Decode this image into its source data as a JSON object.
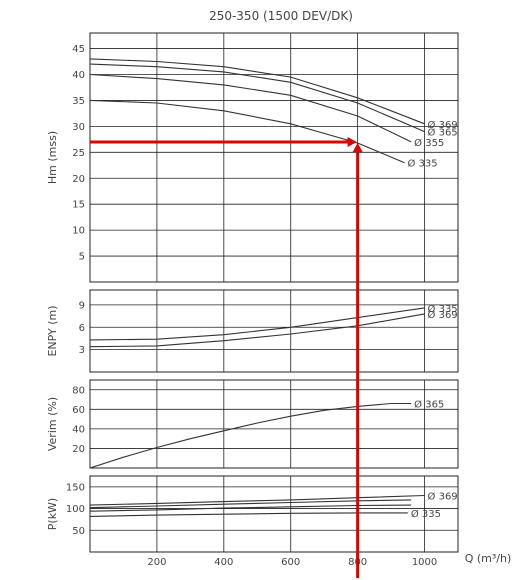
{
  "chart_data": {
    "type": "line",
    "title": "250-350 (1500 DEV/DK)",
    "x_axis": {
      "label": "Q (m³/h)",
      "lim": [
        0,
        1100
      ],
      "ticks": [
        200,
        400,
        600,
        800,
        1000
      ],
      "grid": true
    },
    "panels": [
      {
        "id": "head",
        "ylabel": "Hm (mss)",
        "ylim": [
          0,
          48
        ],
        "yticks": [
          5,
          10,
          15,
          20,
          25,
          30,
          35,
          40,
          45
        ],
        "series": [
          {
            "name": "Ø 369",
            "x": [
              0,
              200,
              400,
              600,
              800,
              1000
            ],
            "y": [
              43,
              42.5,
              41.5,
              39.5,
              35.5,
              30.5
            ]
          },
          {
            "name": "Ø 365",
            "x": [
              0,
              200,
              400,
              600,
              800,
              1000
            ],
            "y": [
              42,
              41.5,
              40.5,
              38.5,
              34.5,
              29
            ]
          },
          {
            "name": "Ø 355",
            "x": [
              0,
              200,
              400,
              600,
              800,
              960
            ],
            "y": [
              40,
              39.2,
              38,
              36,
              32,
              27
            ]
          },
          {
            "name": "Ø 335",
            "x": [
              0,
              200,
              400,
              600,
              800,
              940
            ],
            "y": [
              35,
              34.5,
              33,
              30.5,
              26.8,
              23
            ]
          }
        ]
      },
      {
        "id": "npsh",
        "ylabel": "ENPY (m)",
        "ylim": [
          0,
          11
        ],
        "yticks": [
          3,
          6,
          9
        ],
        "series": [
          {
            "name": "Ø 335",
            "x": [
              0,
              200,
              400,
              600,
              800,
              1000
            ],
            "y": [
              4.3,
              4.4,
              5,
              6,
              7.3,
              8.6
            ]
          },
          {
            "name": "Ø 369",
            "x": [
              0,
              200,
              400,
              600,
              800,
              1000
            ],
            "y": [
              3.4,
              3.5,
              4.2,
              5.1,
              6.2,
              7.8
            ]
          }
        ]
      },
      {
        "id": "efficiency",
        "ylabel": "Verim (%)",
        "ylim": [
          0,
          90
        ],
        "yticks": [
          20,
          40,
          60,
          80
        ],
        "series": [
          {
            "name": "Ø 365",
            "x": [
              0,
              100,
              200,
              300,
              400,
              500,
              600,
              700,
              800,
              900,
              960
            ],
            "y": [
              0,
              11,
              21,
              30,
              38,
              46,
              53,
              59,
              63,
              66,
              66
            ]
          }
        ]
      },
      {
        "id": "power",
        "ylabel": "P(kW)",
        "ylim": [
          0,
          175
        ],
        "yticks": [
          50,
          100,
          150
        ],
        "series": [
          {
            "name": "Ø 369",
            "x": [
              0,
              200,
              400,
              600,
              800,
              1000
            ],
            "y": [
              108,
              112,
              116,
              120,
              125,
              130
            ]
          },
          {
            "name": "",
            "x": [
              0,
              200,
              400,
              600,
              800,
              960
            ],
            "y": [
              102,
              106,
              110,
              114,
              118,
              120
            ]
          },
          {
            "name": "",
            "x": [
              0,
              200,
              400,
              600,
              800,
              960
            ],
            "y": [
              94,
              97,
              101,
              104,
              107,
              108
            ]
          },
          {
            "name": "Ø 335",
            "x": [
              0,
              200,
              400,
              600,
              800,
              950
            ],
            "y": [
              82,
              85,
              87,
              89,
              90,
              90
            ]
          }
        ]
      }
    ],
    "operating_point": {
      "x": 800,
      "head": 27,
      "color": "#e00000"
    }
  }
}
